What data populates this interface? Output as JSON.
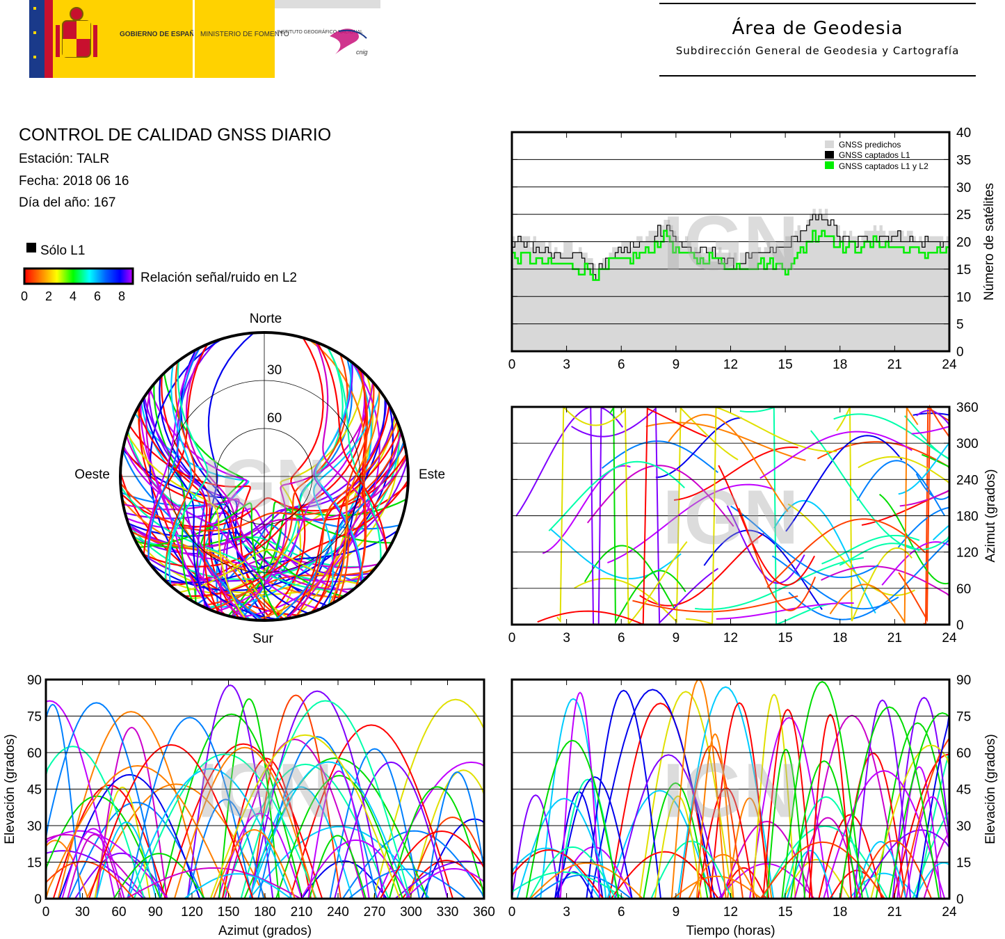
{
  "header": {
    "logos": {
      "gobierno": "GOBIERNO DE ESPAÑA",
      "ministerio": "MINISTERIO DE FOMENTO",
      "instituto": "INSTITUTO GEOGRÁFICO NACIONAL",
      "cnig": "cnig"
    },
    "title": "Área de Geodesia",
    "subtitle": "Subdirección General de Geodesia y Cartografía"
  },
  "info": {
    "title": "CONTROL DE CALIDAD GNSS DIARIO",
    "station": "Estación: TALR",
    "date": "Fecha: 2018 06 16",
    "doy": "Día del año: 167"
  },
  "legend": {
    "l1_only": "Sólo L1",
    "snr_label": "Relación señal/ruido en L2",
    "snr_ticks": [
      "0",
      "2",
      "4",
      "6",
      "8"
    ],
    "colors": [
      "#000000",
      "#ff0000",
      "#ff8000",
      "#ffff00",
      "#00ff00",
      "#00ffff",
      "#0080ff",
      "#0000ff",
      "#c000ff"
    ]
  },
  "watermark": "IGN",
  "skyplot": {
    "north": "Norte",
    "south": "Sur",
    "east": "Este",
    "west": "Oeste",
    "ring_labels": [
      "30",
      "60"
    ]
  },
  "chart_data": [
    {
      "type": "area",
      "id": "satellites",
      "ylabel": "Número de satélites",
      "xlim": [
        0,
        24
      ],
      "ylim": [
        0,
        40
      ],
      "xticks": [
        "0",
        "3",
        "6",
        "9",
        "12",
        "15",
        "18",
        "21",
        "24"
      ],
      "yticks": [
        "0",
        "5",
        "10",
        "15",
        "20",
        "25",
        "30",
        "35",
        "40"
      ],
      "grid": true,
      "legend_position": "top-right",
      "series": [
        {
          "name": "GNSS predichos",
          "color": "#d8d8d8",
          "x": [
            0,
            1,
            2,
            3,
            4,
            4.6,
            5.5,
            6.5,
            7.5,
            8,
            8.5,
            9,
            10,
            11,
            12,
            13,
            14,
            15,
            16,
            16.5,
            17,
            17.5,
            18,
            19,
            20,
            21,
            22,
            23,
            24
          ],
          "y": [
            21,
            20,
            19,
            19,
            18,
            15,
            19,
            20,
            21,
            23,
            24,
            21,
            19,
            19,
            17,
            18,
            19,
            20,
            23,
            25,
            26,
            24,
            21,
            21,
            22,
            22,
            21,
            21,
            21
          ]
        },
        {
          "name": "GNSS captados L1",
          "color": "#000000",
          "x": [
            0,
            1,
            2,
            3,
            4,
            4.6,
            5.5,
            6.5,
            7.5,
            8,
            8.5,
            9,
            10,
            11,
            12,
            13,
            14,
            15,
            16,
            16.5,
            17,
            17.5,
            18,
            19,
            20,
            21,
            22,
            23,
            24
          ],
          "y": [
            20,
            19,
            18,
            18,
            17,
            14,
            18,
            19,
            20,
            22,
            23,
            20,
            18,
            18,
            16,
            17,
            18,
            19,
            22,
            24,
            25,
            23,
            20,
            20,
            21,
            21,
            20,
            20,
            20
          ]
        },
        {
          "name": "GNSS captados L1 y L2",
          "color": "#00ee00",
          "x": [
            0,
            1,
            2,
            3,
            4,
            4.6,
            5.5,
            6.5,
            7.5,
            8,
            8.5,
            9,
            10,
            11,
            12,
            13,
            14,
            15,
            16,
            16.5,
            17,
            17.5,
            18,
            19,
            20,
            21,
            22,
            23,
            24
          ],
          "y": [
            17,
            17,
            16,
            16,
            15,
            14,
            16,
            17,
            18,
            20,
            21,
            18,
            17,
            17,
            15,
            16,
            16,
            15,
            19,
            21,
            22,
            21,
            19,
            19,
            20,
            19,
            18,
            18,
            18
          ]
        }
      ]
    },
    {
      "type": "scatter",
      "id": "azimuth_time",
      "ylabel": "Azimut (grados)",
      "xlim": [
        0,
        24
      ],
      "ylim": [
        0,
        360
      ],
      "xticks": [
        "0",
        "3",
        "6",
        "9",
        "12",
        "15",
        "18",
        "21",
        "24"
      ],
      "yticks": [
        "0",
        "60",
        "120",
        "180",
        "240",
        "300",
        "360"
      ],
      "grid": true
    },
    {
      "type": "scatter",
      "id": "elevation_azimuth",
      "xlabel": "Azimut (grados)",
      "ylabel": "Elevación (grados)",
      "xlim": [
        0,
        360
      ],
      "ylim": [
        0,
        90
      ],
      "xticks": [
        "0",
        "30",
        "60",
        "90",
        "120",
        "150",
        "180",
        "210",
        "240",
        "270",
        "300",
        "330",
        "360"
      ],
      "yticks": [
        "0",
        "15",
        "30",
        "45",
        "60",
        "75",
        "90"
      ],
      "grid": true
    },
    {
      "type": "scatter",
      "id": "elevation_time",
      "xlabel": "Tiempo (horas)",
      "ylabel": "Elevación (grados)",
      "xlim": [
        0,
        24
      ],
      "ylim": [
        0,
        90
      ],
      "xticks": [
        "0",
        "3",
        "6",
        "9",
        "12",
        "15",
        "18",
        "21",
        "24"
      ],
      "yticks": [
        "0",
        "15",
        "30",
        "45",
        "60",
        "75",
        "90"
      ],
      "grid": true
    }
  ]
}
